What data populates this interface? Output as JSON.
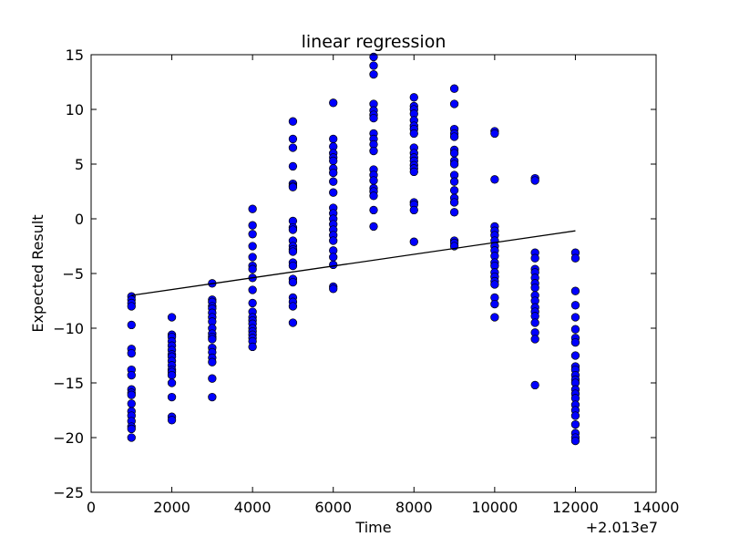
{
  "chart_data": {
    "type": "scatter",
    "title": "linear regression",
    "xlabel": "Time",
    "ylabel": "Expected Result",
    "x_offset_label": "+2.013e7",
    "xlim": [
      0,
      14000
    ],
    "ylim": [
      -25,
      15
    ],
    "x_ticks": [
      0,
      2000,
      4000,
      6000,
      8000,
      10000,
      12000,
      14000
    ],
    "x_tick_labels": [
      "0",
      "2000",
      "4000",
      "6000",
      "8000",
      "10000",
      "12000",
      "14000"
    ],
    "y_ticks": [
      -25,
      -20,
      -15,
      -10,
      -5,
      0,
      5,
      10,
      15
    ],
    "y_tick_labels": [
      "−25",
      "−20",
      "−15",
      "−10",
      "−5",
      "0",
      "5",
      "10",
      "15"
    ],
    "grid": false,
    "point_color": "#0000ff",
    "line_color": "#000000",
    "series": [
      {
        "kind": "points",
        "groups": [
          {
            "x": 1000,
            "y": [
              -7.1,
              -7.4,
              -7.7,
              -8.0,
              -9.7,
              -11.9,
              -12.3,
              -13.8,
              -14.3,
              -15.6,
              -15.9,
              -16.1,
              -16.9,
              -17.6,
              -18.0,
              -18.5,
              -19.0,
              -19.2,
              -20.0
            ]
          },
          {
            "x": 2000,
            "y": [
              -9.0,
              -10.6,
              -10.8,
              -11.2,
              -11.6,
              -12.0,
              -12.4,
              -12.6,
              -13.0,
              -13.4,
              -13.8,
              -14.0,
              -14.3,
              -15.0,
              -16.3,
              -18.1,
              -18.4
            ]
          },
          {
            "x": 3000,
            "y": [
              -5.9,
              -7.4,
              -7.6,
              -8.0,
              -8.2,
              -8.6,
              -9.0,
              -9.4,
              -10.0,
              -10.5,
              -10.8,
              -11.0,
              -11.8,
              -12.2,
              -12.7,
              -13.1,
              -14.6,
              -16.3
            ]
          },
          {
            "x": 4000,
            "y": [
              0.9,
              -0.6,
              -1.4,
              -2.5,
              -3.5,
              -4.3,
              -4.6,
              -5.4,
              -6.5,
              -7.7,
              -8.5,
              -9.0,
              -9.3,
              -9.6,
              -10.0,
              -10.3,
              -10.6,
              -10.9,
              -11.2,
              -11.7
            ]
          },
          {
            "x": 5000,
            "y": [
              8.9,
              7.3,
              6.5,
              4.8,
              3.2,
              3.0,
              2.9,
              -0.2,
              -0.8,
              -1.0,
              -2.0,
              -2.5,
              -2.8,
              -3.0,
              -4.0,
              -4.3,
              -5.5,
              -5.8,
              -7.2,
              -7.6,
              -8.0,
              -9.5
            ]
          },
          {
            "x": 6000,
            "y": [
              10.6,
              7.3,
              6.6,
              6.0,
              5.6,
              5.3,
              4.6,
              4.2,
              3.4,
              2.4,
              1.0,
              0.5,
              0.0,
              -0.5,
              -1.0,
              -1.5,
              -2.0,
              -2.9,
              -3.5,
              -4.2,
              -6.2,
              -6.4
            ]
          },
          {
            "x": 7000,
            "y": [
              14.8,
              14.0,
              13.2,
              10.5,
              9.9,
              9.5,
              9.2,
              7.8,
              7.3,
              6.8,
              6.2,
              4.5,
              4.0,
              3.5,
              2.8,
              2.5,
              2.1,
              0.8,
              -0.7
            ]
          },
          {
            "x": 8000,
            "y": [
              11.1,
              10.3,
              10.0,
              9.6,
              9.0,
              8.5,
              8.2,
              7.8,
              6.5,
              6.0,
              5.6,
              5.3,
              4.9,
              4.6,
              4.3,
              1.5,
              1.3,
              0.8,
              -2.1
            ]
          },
          {
            "x": 9000,
            "y": [
              11.9,
              10.5,
              8.2,
              7.8,
              7.5,
              6.3,
              6.0,
              5.3,
              5.0,
              4.0,
              3.4,
              2.6,
              1.9,
              1.5,
              0.6,
              -2.0,
              -2.2,
              -2.5
            ]
          },
          {
            "x": 10000,
            "y": [
              8.0,
              7.8,
              3.6,
              -0.7,
              -1.1,
              -1.5,
              -2.0,
              -2.5,
              -2.9,
              -3.4,
              -4.0,
              -4.3,
              -4.9,
              -5.3,
              -5.7,
              -6.0,
              -7.2,
              -7.8,
              -9.0
            ]
          },
          {
            "x": 11000,
            "y": [
              3.7,
              3.5,
              -3.1,
              -3.6,
              -4.6,
              -4.9,
              -5.4,
              -5.9,
              -6.3,
              -7.0,
              -7.5,
              -8.1,
              -8.5,
              -8.9,
              -9.5,
              -10.4,
              -11.0,
              -15.2
            ]
          },
          {
            "x": 12000,
            "y": [
              -3.1,
              -3.6,
              -6.6,
              -7.9,
              -9.0,
              -10.1,
              -10.9,
              -11.3,
              -12.5,
              -13.5,
              -13.8,
              -14.3,
              -14.7,
              -15.0,
              -15.6,
              -16.0,
              -16.4,
              -17.0,
              -17.5,
              -18.0,
              -18.8,
              -19.6,
              -20.0,
              -20.3
            ]
          }
        ]
      },
      {
        "kind": "line",
        "x": [
          1000,
          12000
        ],
        "y": [
          -7.0,
          -1.1
        ]
      }
    ]
  }
}
